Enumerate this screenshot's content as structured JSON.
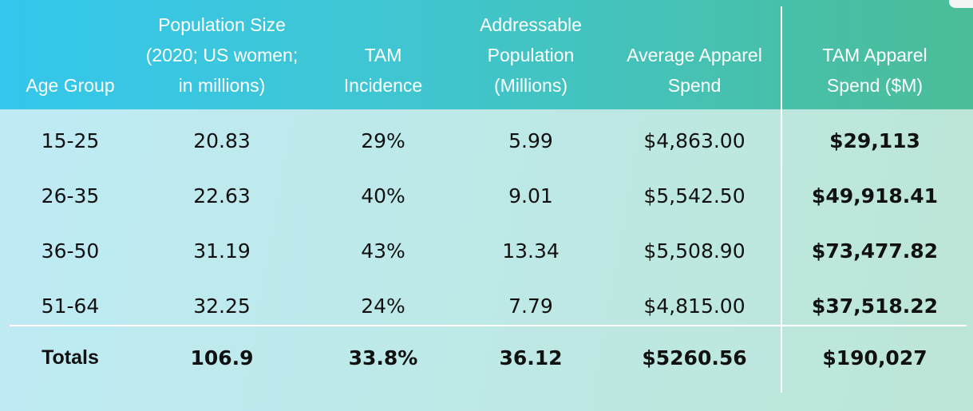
{
  "table": {
    "headers": [
      [
        "Age Group"
      ],
      [
        "Population Size",
        "(2020; US women;",
        "in millions)"
      ],
      [
        "TAM",
        "Incidence"
      ],
      [
        "Addressable",
        "Population",
        "(Millions)"
      ],
      [
        "Average Apparel",
        "Spend"
      ],
      [
        "TAM Apparel",
        "Spend ($M)"
      ]
    ],
    "rows": [
      [
        "15-25",
        "20.83",
        "29%",
        "5.99",
        "$4,863.00",
        "$29,113"
      ],
      [
        "26-35",
        "22.63",
        "40%",
        "9.01",
        "$5,542.50",
        "$49,918.41"
      ],
      [
        "36-50",
        "31.19",
        "43%",
        "13.34",
        "$5,508.90",
        "$73,477.82"
      ],
      [
        "51-64",
        "32.25",
        "24%",
        "7.79",
        "$4,815.00",
        "$37,518.22"
      ]
    ],
    "totals": [
      "Totals",
      "106.9",
      "33.8%",
      "36.12",
      "$5260.56",
      "$190,027"
    ]
  },
  "colors": {
    "header_start": "#34c6ec",
    "header_end": "#4bbd97",
    "body_start": "#bfeaf5",
    "body_end": "#bde6d7",
    "text": "#111111",
    "header_text": "#ffffff"
  }
}
